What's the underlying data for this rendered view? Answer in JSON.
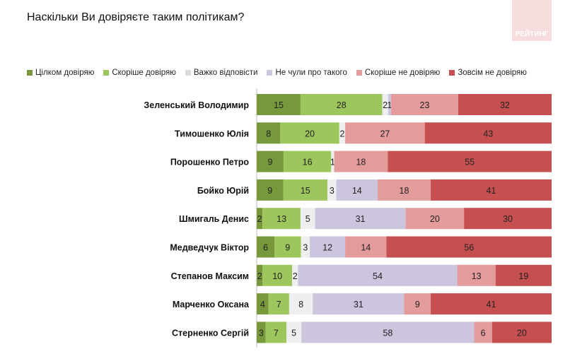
{
  "title": "Наскільки Ви довіряєте таким політикам?",
  "logo_text": "РЕЙТИНГ",
  "chart_data": {
    "type": "bar",
    "orientation": "horizontal",
    "stacked": true,
    "legend_position": "top",
    "categories": [
      "Зеленський Володимир",
      "Тимошенко Юлія",
      "Порошенко Петро",
      "Бойко Юрій",
      "Шмигаль Денис",
      "Медведчук Віктор",
      "Степанов Максим",
      "Марченко Оксана",
      "Стерненко Сергій"
    ],
    "series": [
      {
        "name": "Цілком довіряю",
        "color": "#77993b",
        "values": [
          15,
          8,
          9,
          9,
          2,
          6,
          2,
          4,
          3
        ]
      },
      {
        "name": "Скоріше довіряю",
        "color": "#9dc75c",
        "values": [
          28,
          20,
          16,
          15,
          13,
          9,
          10,
          7,
          7
        ]
      },
      {
        "name": "Важко відповісти",
        "color": "#efefef",
        "values": [
          2,
          2,
          1,
          3,
          5,
          3,
          2,
          8,
          5
        ]
      },
      {
        "name": "Не чули про такого",
        "color": "#cdc4de",
        "values": [
          1,
          0,
          0,
          14,
          31,
          12,
          54,
          31,
          58
        ]
      },
      {
        "name": "Скоріше не довіряю",
        "color": "#e39c9b",
        "values": [
          23,
          27,
          18,
          18,
          20,
          14,
          13,
          9,
          6
        ]
      },
      {
        "name": "Зовсім не довіряю",
        "color": "#c64f4f",
        "values": [
          32,
          43,
          55,
          41,
          30,
          56,
          19,
          41,
          20
        ]
      }
    ]
  }
}
